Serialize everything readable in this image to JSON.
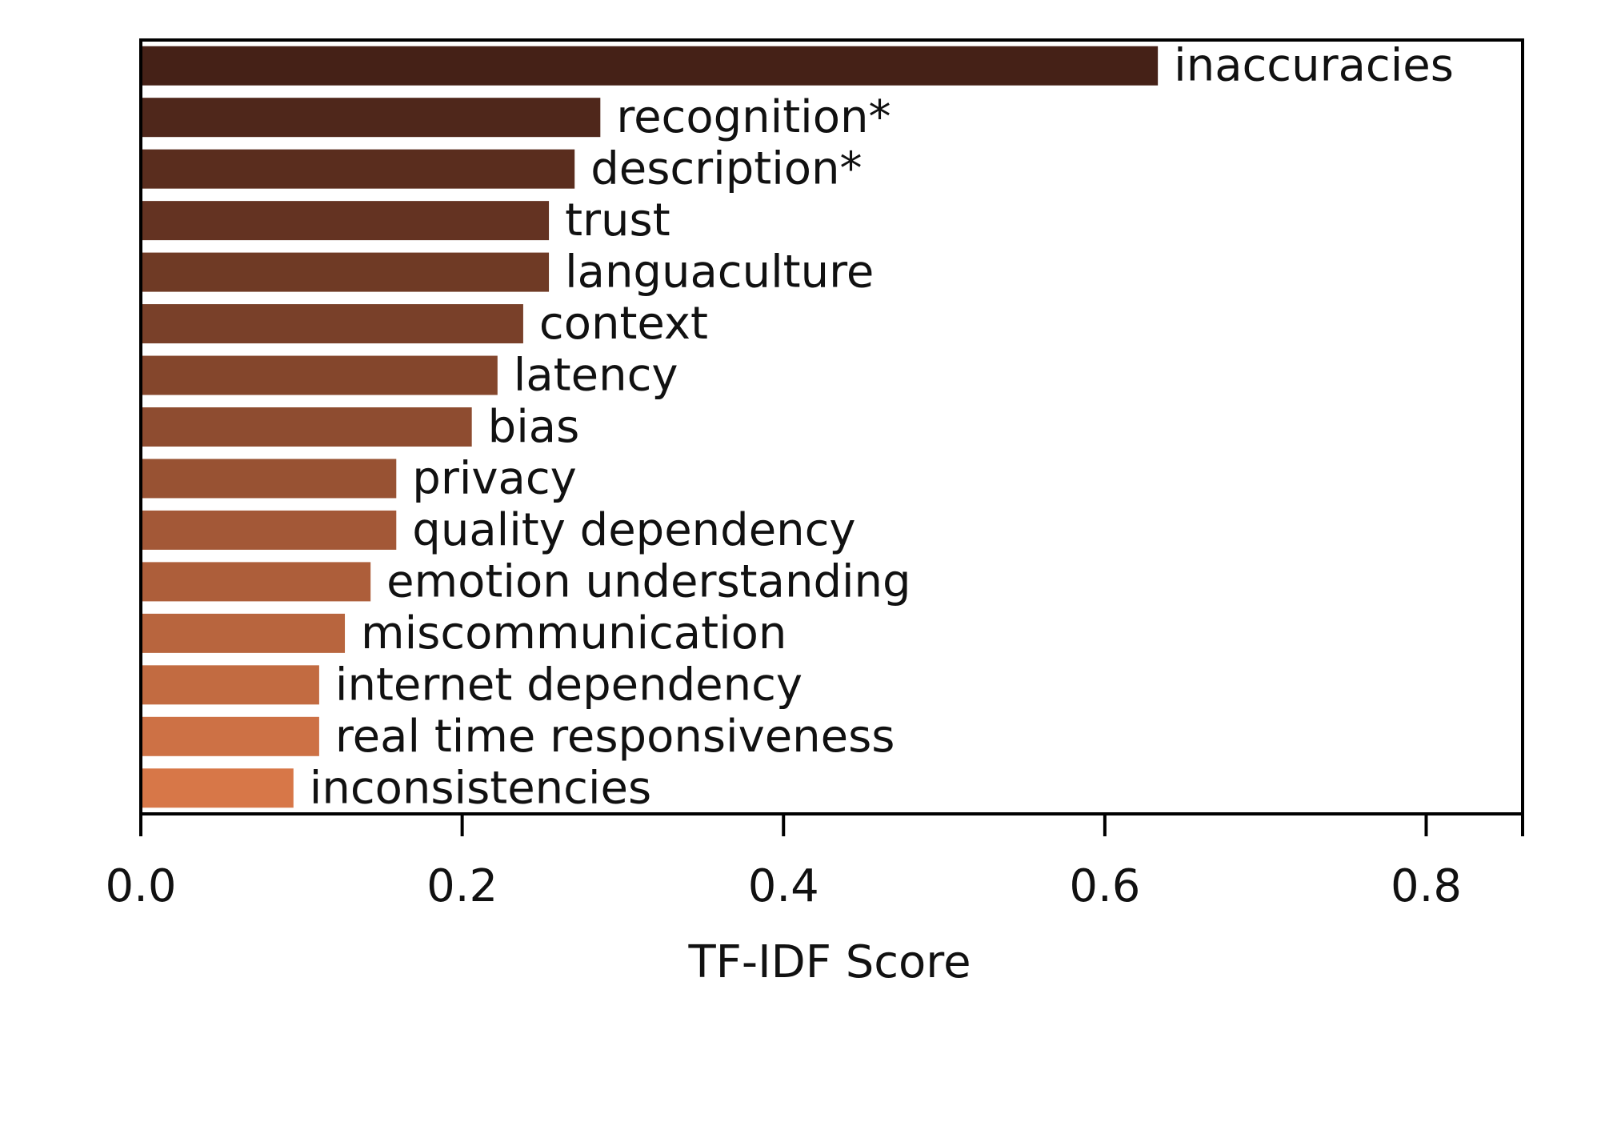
{
  "chart_data": {
    "type": "bar",
    "orientation": "horizontal",
    "title": "",
    "xlabel": "TF-IDF Score",
    "ylabel": "",
    "xlim": [
      0,
      0.86
    ],
    "xticks": [
      "0.0",
      "0.2",
      "0.4",
      "0.6",
      "0.8"
    ],
    "grid": false,
    "legend": "none",
    "categories": [
      "inaccuracies",
      "recognition*",
      "description*",
      "trust",
      "languaculture",
      "context",
      "latency",
      "bias",
      "privacy",
      "quality dependency",
      "emotion understanding",
      "miscommunication",
      "internet dependency",
      "real time responsiveness",
      "inconsistencies"
    ],
    "values": [
      0.633,
      0.286,
      0.27,
      0.254,
      0.254,
      0.238,
      0.222,
      0.206,
      0.159,
      0.159,
      0.143,
      0.127,
      0.111,
      0.111,
      0.095
    ],
    "colors": {
      "bar_start": "#452117",
      "bar_end": "#d77748",
      "axis": "#000000"
    }
  }
}
